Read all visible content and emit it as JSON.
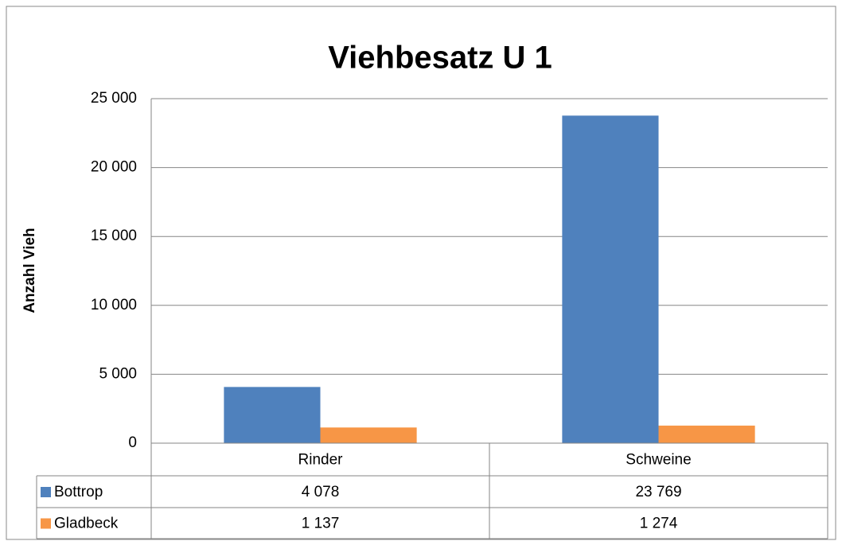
{
  "chart_data": {
    "type": "bar",
    "title": "Viehbesatz U 1",
    "y_label": "Anzahl Vieh",
    "categories": [
      "Rinder",
      "Schweine"
    ],
    "series": [
      {
        "name": "Bottrop",
        "color": "#4f81bd",
        "values": [
          4078,
          23769
        ],
        "value_labels": [
          "4 078",
          "23 769"
        ]
      },
      {
        "name": "Gladbeck",
        "color": "#f79646",
        "values": [
          1137,
          1274
        ],
        "value_labels": [
          "1 137",
          "1 274"
        ]
      }
    ],
    "ylim": [
      0,
      25000
    ],
    "yticks": [
      0,
      {
        "value": 5000,
        "label": "5 000"
      },
      {
        "value": 10000,
        "label": "10 000"
      },
      {
        "value": 15000,
        "label": "15 000"
      },
      {
        "value": 20000,
        "label": "20 000"
      },
      {
        "value": 25000,
        "label": "25 000"
      }
    ],
    "grid": true,
    "data_table": true
  }
}
